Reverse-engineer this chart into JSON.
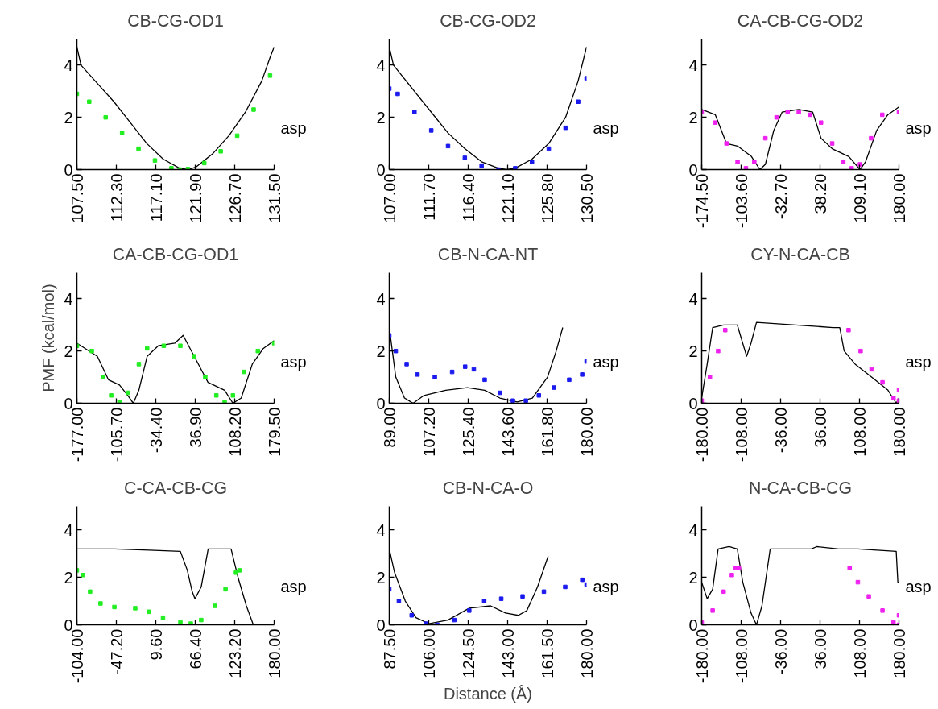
{
  "chart_data": [
    {
      "type": "line",
      "title": "CB-CG-OD1",
      "xlim": [
        107.5,
        131.5
      ],
      "ylim": [
        0,
        5
      ],
      "yticks": [
        0,
        2,
        4
      ],
      "xticks": [
        {
          "value": 107.5,
          "label": "107.50"
        },
        {
          "value": 112.3,
          "label": "112.30"
        },
        {
          "value": 117.1,
          "label": "117.10"
        },
        {
          "value": 121.9,
          "label": "121.90"
        },
        {
          "value": 126.7,
          "label": "126.70"
        },
        {
          "value": 131.5,
          "label": "131.50"
        }
      ],
      "annotations": [
        "asp"
      ],
      "grid": false,
      "series": [
        {
          "type": "line",
          "color": "#000000",
          "x": [
            107.5,
            108,
            110,
            112,
            114,
            116,
            118,
            120,
            121,
            122,
            124,
            126,
            128,
            130,
            131,
            131.5
          ],
          "values": [
            4.7,
            4.0,
            3.3,
            2.6,
            1.8,
            1.0,
            0.4,
            0.05,
            0.0,
            0.1,
            0.6,
            1.3,
            2.2,
            3.4,
            4.3,
            4.7
          ]
        },
        {
          "type": "scatter",
          "marker": "square",
          "color": "#22ee22",
          "x": [
            107.5,
            109,
            111,
            113,
            115,
            117,
            119,
            120,
            121,
            123,
            125,
            127,
            129,
            131
          ],
          "values": [
            2.9,
            2.6,
            2.0,
            1.4,
            0.8,
            0.35,
            0.05,
            0.0,
            0.02,
            0.25,
            0.7,
            1.3,
            2.3,
            3.6
          ]
        }
      ]
    },
    {
      "type": "line",
      "title": "CB-CG-OD2",
      "xlim": [
        107.0,
        130.5
      ],
      "ylim": [
        0,
        5
      ],
      "yticks": [
        0,
        2,
        4
      ],
      "xticks": [
        {
          "value": 107.0,
          "label": "107.00"
        },
        {
          "value": 111.7,
          "label": "111.70"
        },
        {
          "value": 116.4,
          "label": "116.40"
        },
        {
          "value": 121.1,
          "label": "121.10"
        },
        {
          "value": 125.8,
          "label": "125.80"
        },
        {
          "value": 130.5,
          "label": "130.50"
        }
      ],
      "annotations": [
        "asp"
      ],
      "grid": false,
      "series": [
        {
          "type": "line",
          "color": "#000000",
          "x": [
            107,
            107.5,
            108.5,
            110,
            112,
            114,
            116,
            118,
            120,
            121,
            122,
            124,
            126,
            128,
            129.5,
            130.5
          ],
          "values": [
            4.7,
            4.0,
            3.6,
            3.0,
            2.2,
            1.4,
            0.8,
            0.3,
            0.05,
            0.0,
            0.05,
            0.4,
            1.0,
            2.0,
            3.4,
            4.7
          ]
        },
        {
          "type": "scatter",
          "marker": "square",
          "color": "#1a1aee",
          "x": [
            107,
            108,
            110,
            112,
            114,
            116,
            118,
            120,
            122,
            124,
            126,
            128,
            129.5,
            130.5
          ],
          "values": [
            3.1,
            2.9,
            2.2,
            1.5,
            0.9,
            0.45,
            0.15,
            0.0,
            0.05,
            0.3,
            0.8,
            1.6,
            2.6,
            3.5
          ]
        }
      ]
    },
    {
      "type": "line",
      "title": "CA-CB-CG-OD2",
      "xlim": [
        -174.5,
        180.0
      ],
      "ylim": [
        0,
        5
      ],
      "yticks": [
        0,
        2,
        4
      ],
      "xticks": [
        {
          "value": -174.5,
          "label": "-174.50"
        },
        {
          "value": -103.6,
          "label": "-103.60"
        },
        {
          "value": -32.7,
          "label": "-32.70"
        },
        {
          "value": 38.2,
          "label": "38.20"
        },
        {
          "value": 109.1,
          "label": "109.10"
        },
        {
          "value": 180.0,
          "label": "180.00"
        }
      ],
      "annotations": [
        "asp"
      ],
      "grid": false,
      "series": [
        {
          "type": "line",
          "color": "#000000",
          "x": [
            -174.5,
            -150,
            -130,
            -110,
            -85,
            -70,
            -60,
            -45,
            -30,
            0,
            25,
            40,
            60,
            90,
            110,
            120,
            140,
            160,
            180
          ],
          "values": [
            2.3,
            2.1,
            1.0,
            0.9,
            0.5,
            0.0,
            0.2,
            1.5,
            2.2,
            2.3,
            2.2,
            1.2,
            0.8,
            0.5,
            0.0,
            0.3,
            1.5,
            2.1,
            2.4
          ]
        },
        {
          "type": "scatter",
          "marker": "square",
          "color": "#ee22ee",
          "x": [
            -174.5,
            -150,
            -130,
            -110,
            -95,
            -80,
            -60,
            -40,
            -20,
            0,
            20,
            40,
            60,
            80,
            95,
            110,
            130,
            150,
            180
          ],
          "values": [
            2.2,
            1.8,
            1.0,
            0.3,
            0.05,
            0.3,
            1.2,
            2.0,
            2.2,
            2.2,
            2.1,
            1.8,
            1.0,
            0.3,
            0.05,
            0.2,
            1.2,
            2.1,
            2.2
          ]
        }
      ]
    },
    {
      "type": "line",
      "title": "CA-CB-CG-OD1",
      "ylabel": "PMF (kcal/mol)",
      "xlim": [
        -177.0,
        179.5
      ],
      "ylim": [
        0,
        5
      ],
      "yticks": [
        0,
        2,
        4
      ],
      "xticks": [
        {
          "value": -177.0,
          "label": "-177.00"
        },
        {
          "value": -105.7,
          "label": "-105.70"
        },
        {
          "value": -34.4,
          "label": "-34.40"
        },
        {
          "value": 36.9,
          "label": "36.90"
        },
        {
          "value": 108.2,
          "label": "108.20"
        },
        {
          "value": 179.5,
          "label": "179.50"
        }
      ],
      "annotations": [
        "asp"
      ],
      "grid": false,
      "series": [
        {
          "type": "line",
          "color": "#000000",
          "x": [
            -177,
            -140,
            -120,
            -100,
            -85,
            -75,
            -65,
            -50,
            -30,
            0,
            15,
            30,
            60,
            90,
            105,
            120,
            140,
            160,
            179.5
          ],
          "values": [
            2.3,
            1.8,
            0.9,
            0.7,
            0.3,
            0.0,
            0.5,
            1.8,
            2.2,
            2.3,
            2.6,
            2.0,
            0.8,
            0.5,
            0.0,
            0.2,
            1.5,
            2.1,
            2.4
          ]
        },
        {
          "type": "scatter",
          "marker": "square",
          "color": "#22ee22",
          "x": [
            -177,
            -150,
            -130,
            -115,
            -100,
            -85,
            -65,
            -50,
            -20,
            10,
            35,
            55,
            75,
            90,
            105,
            125,
            150,
            179.5
          ],
          "values": [
            2.2,
            2.0,
            1.0,
            0.3,
            0.05,
            0.4,
            1.5,
            2.1,
            2.2,
            2.2,
            1.8,
            1.0,
            0.3,
            0.05,
            0.3,
            1.2,
            2.0,
            2.3
          ]
        }
      ]
    },
    {
      "type": "line",
      "title": "CB-N-CA-NT",
      "xlim": [
        89.0,
        180.0
      ],
      "ylim": [
        0,
        5
      ],
      "yticks": [
        0,
        2,
        4
      ],
      "xticks": [
        {
          "value": 89.0,
          "label": "89.00"
        },
        {
          "value": 107.2,
          "label": "107.20"
        },
        {
          "value": 125.4,
          "label": "125.40"
        },
        {
          "value": 143.6,
          "label": "143.60"
        },
        {
          "value": 161.8,
          "label": "161.80"
        },
        {
          "value": 180.0,
          "label": "180.00"
        }
      ],
      "annotations": [
        "asp"
      ],
      "grid": false,
      "series": [
        {
          "type": "line",
          "color": "#000000",
          "x": [
            89,
            92,
            96,
            100,
            105,
            115,
            125,
            133,
            140,
            148,
            155,
            162,
            166,
            169
          ],
          "values": [
            2.9,
            1.0,
            0.2,
            0.0,
            0.3,
            0.5,
            0.6,
            0.5,
            0.2,
            0.05,
            0.2,
            1.0,
            2.0,
            2.9
          ]
        },
        {
          "type": "scatter",
          "marker": "square",
          "color": "#1a1aee",
          "x": [
            89,
            92,
            97,
            102,
            110,
            118,
            124,
            128,
            133,
            140,
            146,
            152,
            158,
            165,
            172,
            178,
            180
          ],
          "values": [
            2.6,
            2.0,
            1.5,
            1.1,
            1.0,
            1.2,
            1.4,
            1.3,
            0.9,
            0.4,
            0.1,
            0.1,
            0.3,
            0.6,
            0.9,
            1.1,
            1.6
          ]
        }
      ]
    },
    {
      "type": "line",
      "title": "CY-N-CA-CB",
      "xlim": [
        -180.0,
        180.0
      ],
      "ylim": [
        0,
        5
      ],
      "yticks": [
        0,
        2,
        4
      ],
      "xticks": [
        {
          "value": -180.0,
          "label": "-180.00"
        },
        {
          "value": -108.0,
          "label": "-108.00"
        },
        {
          "value": -36.0,
          "label": "-36.00"
        },
        {
          "value": 36.0,
          "label": "36.00"
        },
        {
          "value": 108.0,
          "label": "108.00"
        },
        {
          "value": 180.0,
          "label": "180.00"
        }
      ],
      "annotations": [
        "asp"
      ],
      "grid": false,
      "series": [
        {
          "type": "line",
          "color": "#000000",
          "x": [
            -180,
            -170,
            -160,
            -140,
            -115,
            -108,
            -98,
            -90,
            -80,
            60,
            72,
            80,
            100,
            130,
            160,
            175,
            180
          ],
          "values": [
            0.2,
            1.5,
            2.9,
            3.0,
            3.0,
            2.5,
            1.8,
            2.3,
            3.1,
            2.9,
            2.9,
            2.0,
            1.5,
            1.0,
            0.5,
            0.0,
            0.2
          ]
        },
        {
          "type": "scatter",
          "marker": "square",
          "color": "#ee22ee",
          "x": [
            -180,
            -165,
            -150,
            -137,
            null,
            88,
            110,
            130,
            150,
            170,
            180,
            180
          ],
          "values": [
            0.1,
            1.0,
            2.0,
            2.8,
            null,
            2.8,
            2.0,
            1.3,
            0.8,
            0.2,
            0.1,
            0.5
          ]
        }
      ]
    },
    {
      "type": "line",
      "title": "C-CA-CB-CG",
      "xlim": [
        -104.0,
        180.0
      ],
      "ylim": [
        0,
        5
      ],
      "yticks": [
        0,
        2,
        4
      ],
      "xticks": [
        {
          "value": -104.0,
          "label": "-104.00"
        },
        {
          "value": -47.2,
          "label": "-47.20"
        },
        {
          "value": 9.6,
          "label": "9.60"
        },
        {
          "value": 66.4,
          "label": "66.40"
        },
        {
          "value": 123.2,
          "label": "123.20"
        },
        {
          "value": 180.0,
          "label": "180.00"
        }
      ],
      "annotations": [
        "asp"
      ],
      "grid": false,
      "series": [
        {
          "type": "line",
          "color": "#000000",
          "x": [
            -104,
            -50,
            0,
            45,
            55,
            62,
            66,
            75,
            85,
            108,
            118,
            128,
            140,
            150
          ],
          "values": [
            3.2,
            3.2,
            3.15,
            3.1,
            2.3,
            1.4,
            1.1,
            1.6,
            3.2,
            3.2,
            3.2,
            2.0,
            0.8,
            0.0
          ]
        },
        {
          "type": "scatter",
          "marker": "square",
          "color": "#22ee22",
          "x": [
            -104,
            -95,
            -85,
            -70,
            -50,
            -20,
            0,
            20,
            45,
            60,
            75,
            95,
            110,
            125,
            130
          ],
          "values": [
            2.3,
            2.1,
            1.4,
            0.9,
            0.75,
            0.7,
            0.55,
            0.3,
            0.1,
            0.05,
            0.2,
            0.8,
            1.5,
            2.2,
            2.3
          ]
        }
      ]
    },
    {
      "type": "line",
      "title": "CB-N-CA-O",
      "xlabel": "Distance (Å)",
      "xlim": [
        87.5,
        180.0
      ],
      "ylim": [
        0,
        5
      ],
      "yticks": [
        0,
        2,
        4
      ],
      "xticks": [
        {
          "value": 87.5,
          "label": "87.50"
        },
        {
          "value": 106.0,
          "label": "106.00"
        },
        {
          "value": 124.5,
          "label": "124.50"
        },
        {
          "value": 143.0,
          "label": "143.00"
        },
        {
          "value": 161.5,
          "label": "161.50"
        },
        {
          "value": 180.0,
          "label": "180.00"
        }
      ],
      "annotations": [
        "asp"
      ],
      "grid": false,
      "series": [
        {
          "type": "line",
          "color": "#000000",
          "x": [
            87.5,
            90,
            95,
            100,
            106,
            115,
            125,
            135,
            142,
            148,
            152,
            157,
            162
          ],
          "values": [
            3.2,
            2.2,
            1.0,
            0.3,
            0.05,
            0.2,
            0.7,
            0.8,
            0.5,
            0.4,
            0.6,
            1.6,
            2.9
          ]
        },
        {
          "type": "scatter",
          "marker": "square",
          "color": "#1a1aee",
          "x": [
            87.5,
            92,
            98,
            105,
            110,
            118,
            125,
            132,
            140,
            150,
            160,
            170,
            178,
            180
          ],
          "values": [
            1.5,
            1.0,
            0.4,
            0.05,
            0.0,
            0.2,
            0.6,
            1.0,
            1.1,
            1.2,
            1.4,
            1.6,
            1.9,
            1.7
          ]
        }
      ]
    },
    {
      "type": "line",
      "title": "N-CA-CB-CG",
      "xlim": [
        -180.0,
        180.0
      ],
      "ylim": [
        0,
        5
      ],
      "yticks": [
        0,
        2,
        4
      ],
      "xticks": [
        {
          "value": -180.0,
          "label": "-180.00"
        },
        {
          "value": -108.0,
          "label": "-108.00"
        },
        {
          "value": -36.0,
          "label": "-36.00"
        },
        {
          "value": 36.0,
          "label": "36.00"
        },
        {
          "value": 108.0,
          "label": "108.00"
        },
        {
          "value": 180.0,
          "label": "180.00"
        }
      ],
      "annotations": [
        "asp"
      ],
      "grid": false,
      "series": [
        {
          "type": "line",
          "color": "#000000",
          "x": [
            -180,
            -170,
            -160,
            -150,
            -130,
            -115,
            -105,
            -90,
            -80,
            -70,
            -55,
            20,
            30,
            70,
            105,
            175,
            178,
            180
          ],
          "values": [
            1.8,
            1.1,
            1.5,
            3.2,
            3.3,
            3.2,
            1.8,
            0.5,
            0.0,
            0.8,
            3.2,
            3.2,
            3.3,
            3.2,
            3.2,
            3.1,
            1.8,
            1.8
          ]
        },
        {
          "type": "scatter",
          "marker": "square",
          "color": "#ee22ee",
          "x": [
            -180,
            -160,
            -140,
            -125,
            -118,
            -112,
            null,
            90,
            105,
            125,
            150,
            170,
            180,
            180
          ],
          "values": [
            0.1,
            0.6,
            1.4,
            2.1,
            2.4,
            2.4,
            null,
            2.4,
            1.8,
            1.2,
            0.6,
            0.1,
            0.0,
            0.4
          ]
        }
      ]
    }
  ]
}
